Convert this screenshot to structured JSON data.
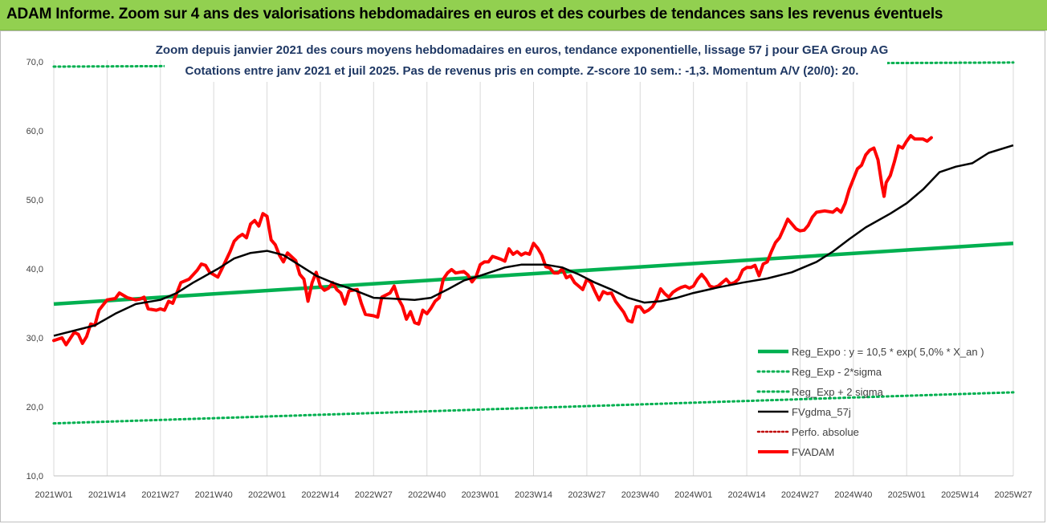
{
  "banner": {
    "title": "ADAM Informe. Zoom sur 4 ans des valorisations hebdomadaires en euros et des courbes de tendances sans les revenus éventuels"
  },
  "colors": {
    "banner_bg": "#92d050",
    "reg_expo": "#00b050",
    "reg_bands": "#00b050",
    "fvgdma": "#000000",
    "perfo": "#c00000",
    "fvadam": "#ff0000",
    "title_text": "#1f3864"
  },
  "chart_data": {
    "type": "line",
    "title": "Zoom depuis janvier 2021 des cours moyens hebdomadaires en euros, tendance exponentielle, lissage 57 j pour GEA Group AG",
    "subtitle": "Cotations entre janv 2021 et juil 2025. Pas de revenus pris en compte. Z-score 10 sem.: -1,3. Momentum A/V (20/0): 20.",
    "xlabel": "",
    "ylabel": "",
    "ylim": [
      10,
      70
    ],
    "yticks": [
      "10,0",
      "20,0",
      "30,0",
      "40,0",
      "50,0",
      "60,0",
      "70,0"
    ],
    "xlim": [
      0,
      234
    ],
    "x_tick_labels": [
      "2021W01",
      "2021W14",
      "2021W27",
      "2021W40",
      "2022W01",
      "2022W14",
      "2022W27",
      "2022W40",
      "2023W01",
      "2023W14",
      "2023W27",
      "2023W40",
      "2024W01",
      "2024W14",
      "2024W27",
      "2024W40",
      "2025W01",
      "2025W14",
      "2025W27"
    ],
    "x_tick_positions": [
      0,
      13,
      26,
      39,
      52,
      65,
      78,
      91,
      104,
      117,
      130,
      143,
      156,
      169,
      182,
      195,
      208,
      221,
      234
    ],
    "grid": "vertical",
    "legend_position": "bottom-right",
    "series": [
      {
        "name": "Reg_Expo : y = 10,5 * exp( 5,0% * X_an )",
        "style": "solid",
        "line": [
          [
            0,
            34.9
          ],
          [
            234,
            43.7
          ]
        ]
      },
      {
        "name": "Reg_Exp - 2*sigma",
        "style": "dotted",
        "line": [
          [
            0,
            69.3
          ],
          [
            234,
            69.9
          ]
        ]
      },
      {
        "name": "Reg_Exp + 2 sigma",
        "style": "dotted",
        "line": [
          [
            0,
            17.6
          ],
          [
            234,
            22.1
          ]
        ]
      },
      {
        "name": "FVgdma_57j",
        "style": "solid",
        "points": [
          [
            0,
            30.3
          ],
          [
            10,
            31.8
          ],
          [
            15,
            33.5
          ],
          [
            20,
            34.9
          ],
          [
            26,
            35.5
          ],
          [
            30,
            36.5
          ],
          [
            34,
            38.0
          ],
          [
            40,
            40.0
          ],
          [
            44,
            41.5
          ],
          [
            48,
            42.3
          ],
          [
            52,
            42.6
          ],
          [
            56,
            42.0
          ],
          [
            60,
            40.5
          ],
          [
            64,
            39.0
          ],
          [
            68,
            38.0
          ],
          [
            72,
            37.2
          ],
          [
            78,
            35.8
          ],
          [
            82,
            35.7
          ],
          [
            88,
            35.5
          ],
          [
            92,
            35.8
          ],
          [
            96,
            37.0
          ],
          [
            100,
            38.3
          ],
          [
            104,
            39.0
          ],
          [
            110,
            40.2
          ],
          [
            114,
            40.6
          ],
          [
            120,
            40.6
          ],
          [
            124,
            40.2
          ],
          [
            128,
            39.2
          ],
          [
            132,
            38.0
          ],
          [
            136,
            37.0
          ],
          [
            140,
            35.8
          ],
          [
            144,
            35.1
          ],
          [
            148,
            35.3
          ],
          [
            152,
            35.8
          ],
          [
            156,
            36.5
          ],
          [
            162,
            37.3
          ],
          [
            168,
            38.0
          ],
          [
            174,
            38.6
          ],
          [
            180,
            39.5
          ],
          [
            186,
            41.0
          ],
          [
            190,
            42.5
          ],
          [
            194,
            44.3
          ],
          [
            198,
            46.0
          ],
          [
            204,
            48.0
          ],
          [
            208,
            49.5
          ],
          [
            212,
            51.5
          ],
          [
            216,
            54.0
          ],
          [
            220,
            54.8
          ],
          [
            224,
            55.3
          ],
          [
            228,
            56.8
          ],
          [
            234,
            57.9
          ]
        ]
      },
      {
        "name": "Perfo. absolue",
        "style": "dotted",
        "points": []
      },
      {
        "name": "FVADAM",
        "style": "solid",
        "points": [
          [
            0,
            29.6
          ],
          [
            2,
            30.0
          ],
          [
            3,
            29.0
          ],
          [
            5,
            30.8
          ],
          [
            6,
            30.5
          ],
          [
            7,
            29.2
          ],
          [
            8,
            30.2
          ],
          [
            9,
            32.0
          ],
          [
            10,
            31.8
          ],
          [
            11,
            34.0
          ],
          [
            13,
            35.5
          ],
          [
            15,
            35.7
          ],
          [
            16,
            36.5
          ],
          [
            18,
            35.8
          ],
          [
            20,
            35.5
          ],
          [
            21,
            35.6
          ],
          [
            22,
            35.9
          ],
          [
            23,
            34.2
          ],
          [
            25,
            34.0
          ],
          [
            26,
            34.2
          ],
          [
            27,
            34.0
          ],
          [
            28,
            35.3
          ],
          [
            29,
            35.0
          ],
          [
            30,
            36.5
          ],
          [
            31,
            38.0
          ],
          [
            33,
            38.5
          ],
          [
            35,
            39.8
          ],
          [
            36,
            40.7
          ],
          [
            37,
            40.5
          ],
          [
            38,
            39.5
          ],
          [
            40,
            38.8
          ],
          [
            41,
            40.0
          ],
          [
            43,
            42.5
          ],
          [
            44,
            44.0
          ],
          [
            45,
            44.6
          ],
          [
            46,
            45.0
          ],
          [
            47,
            44.5
          ],
          [
            48,
            46.5
          ],
          [
            49,
            47.0
          ],
          [
            50,
            46.2
          ],
          [
            51,
            48.0
          ],
          [
            52,
            47.6
          ],
          [
            53,
            44.2
          ],
          [
            54,
            43.5
          ],
          [
            55,
            42.0
          ],
          [
            56,
            41.0
          ],
          [
            57,
            42.3
          ],
          [
            59,
            41.2
          ],
          [
            60,
            39.2
          ],
          [
            61,
            38.5
          ],
          [
            62,
            35.3
          ],
          [
            63,
            38.0
          ],
          [
            64,
            39.5
          ],
          [
            65,
            37.5
          ],
          [
            66,
            36.9
          ],
          [
            67,
            37.2
          ],
          [
            68,
            38.0
          ],
          [
            69,
            37.0
          ],
          [
            70,
            36.5
          ],
          [
            71,
            34.9
          ],
          [
            72,
            36.8
          ],
          [
            74,
            37.0
          ],
          [
            75,
            35.0
          ],
          [
            76,
            33.4
          ],
          [
            78,
            33.2
          ],
          [
            79,
            33.0
          ],
          [
            80,
            35.9
          ],
          [
            82,
            36.5
          ],
          [
            83,
            37.5
          ],
          [
            84,
            35.7
          ],
          [
            85,
            34.6
          ],
          [
            86,
            32.7
          ],
          [
            87,
            33.8
          ],
          [
            88,
            32.2
          ],
          [
            89,
            32.0
          ],
          [
            90,
            34.0
          ],
          [
            91,
            33.5
          ],
          [
            92,
            34.3
          ],
          [
            93,
            35.3
          ],
          [
            94,
            35.8
          ],
          [
            95,
            38.5
          ],
          [
            96,
            39.4
          ],
          [
            97,
            39.9
          ],
          [
            98,
            39.4
          ],
          [
            99,
            39.5
          ],
          [
            100,
            39.6
          ],
          [
            101,
            39.1
          ],
          [
            102,
            38.1
          ],
          [
            103,
            38.9
          ],
          [
            104,
            40.6
          ],
          [
            105,
            41.0
          ],
          [
            106,
            41.0
          ],
          [
            107,
            41.8
          ],
          [
            108,
            41.6
          ],
          [
            109,
            41.4
          ],
          [
            110,
            41.1
          ],
          [
            111,
            42.9
          ],
          [
            112,
            42.1
          ],
          [
            113,
            42.5
          ],
          [
            114,
            42.0
          ],
          [
            115,
            42.3
          ],
          [
            116,
            42.1
          ],
          [
            117,
            43.7
          ],
          [
            118,
            43.0
          ],
          [
            119,
            42.0
          ],
          [
            120,
            40.3
          ],
          [
            121,
            40.1
          ],
          [
            122,
            39.4
          ],
          [
            123,
            39.4
          ],
          [
            124,
            40.0
          ],
          [
            125,
            38.7
          ],
          [
            126,
            39.0
          ],
          [
            127,
            38.0
          ],
          [
            128,
            37.5
          ],
          [
            129,
            37.0
          ],
          [
            130,
            38.5
          ],
          [
            131,
            38.0
          ],
          [
            132,
            36.7
          ],
          [
            133,
            35.5
          ],
          [
            134,
            36.7
          ],
          [
            135,
            36.4
          ],
          [
            136,
            36.5
          ],
          [
            137,
            35.3
          ],
          [
            138,
            34.5
          ],
          [
            139,
            33.7
          ],
          [
            140,
            32.5
          ],
          [
            141,
            32.3
          ],
          [
            142,
            34.5
          ],
          [
            143,
            34.5
          ],
          [
            144,
            33.7
          ],
          [
            145,
            34.0
          ],
          [
            146,
            34.5
          ],
          [
            147,
            35.5
          ],
          [
            148,
            37.1
          ],
          [
            149,
            36.4
          ],
          [
            150,
            35.9
          ],
          [
            151,
            36.6
          ],
          [
            152,
            37.0
          ],
          [
            153,
            37.3
          ],
          [
            154,
            37.5
          ],
          [
            155,
            37.2
          ],
          [
            156,
            37.5
          ],
          [
            157,
            38.5
          ],
          [
            158,
            39.2
          ],
          [
            159,
            38.5
          ],
          [
            160,
            37.5
          ],
          [
            161,
            37.3
          ],
          [
            162,
            37.5
          ],
          [
            163,
            38.0
          ],
          [
            164,
            38.5
          ],
          [
            165,
            37.8
          ],
          [
            166,
            38.0
          ],
          [
            167,
            38.5
          ],
          [
            168,
            39.8
          ],
          [
            169,
            40.2
          ],
          [
            170,
            40.2
          ],
          [
            171,
            40.5
          ],
          [
            172,
            39.0
          ],
          [
            173,
            40.7
          ],
          [
            174,
            41.0
          ],
          [
            175,
            42.5
          ],
          [
            176,
            43.8
          ],
          [
            177,
            44.5
          ],
          [
            178,
            45.8
          ],
          [
            179,
            47.2
          ],
          [
            180,
            46.5
          ],
          [
            181,
            45.8
          ],
          [
            182,
            45.5
          ],
          [
            183,
            45.6
          ],
          [
            184,
            46.3
          ],
          [
            185,
            47.5
          ],
          [
            186,
            48.2
          ],
          [
            188,
            48.4
          ],
          [
            190,
            48.2
          ],
          [
            191,
            48.7
          ],
          [
            192,
            48.2
          ],
          [
            193,
            49.5
          ],
          [
            194,
            51.5
          ],
          [
            195,
            53.0
          ],
          [
            196,
            54.5
          ],
          [
            197,
            55.0
          ],
          [
            198,
            56.5
          ],
          [
            199,
            57.2
          ],
          [
            200,
            57.5
          ],
          [
            201,
            55.8
          ],
          [
            202,
            52.0
          ],
          [
            202.5,
            50.5
          ],
          [
            203,
            52.5
          ],
          [
            204,
            53.5
          ],
          [
            205,
            55.5
          ],
          [
            206,
            57.8
          ],
          [
            207,
            57.5
          ],
          [
            208,
            58.5
          ],
          [
            209,
            59.3
          ],
          [
            210,
            58.8
          ],
          [
            212,
            58.8
          ],
          [
            213,
            58.5
          ],
          [
            214,
            59.0
          ]
        ]
      }
    ]
  }
}
